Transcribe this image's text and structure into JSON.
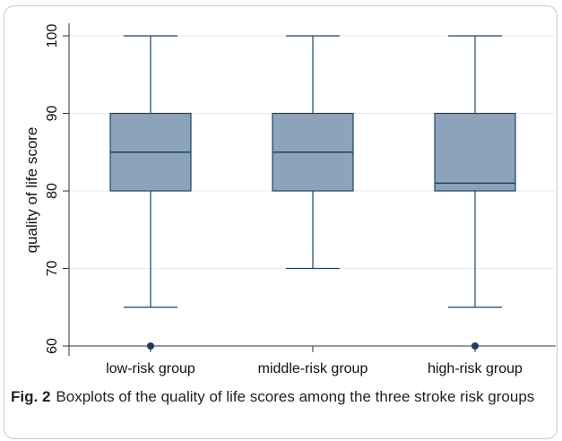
{
  "figure": {
    "caption_label": "Fig. 2",
    "caption_text": "Boxplots of the quality of life scores among the three stroke risk groups"
  },
  "chart_data": {
    "type": "boxplot",
    "title": "",
    "xlabel": "",
    "ylabel": "quality of life score",
    "ylim": [
      60,
      100
    ],
    "yticks": [
      60,
      70,
      80,
      90,
      100
    ],
    "grid": true,
    "box_color": "#8da3ba",
    "line_color": "#1f4468",
    "outlier_color": "#1a3d63",
    "categories": [
      "low-risk group",
      "middle-risk group",
      "high-risk group"
    ],
    "boxes": [
      {
        "category": "low-risk group",
        "whisker_low": 65,
        "q1": 80,
        "median": 85,
        "q3": 90,
        "whisker_high": 100,
        "outliers": [
          60
        ]
      },
      {
        "category": "middle-risk group",
        "whisker_low": 70,
        "q1": 80,
        "median": 85,
        "q3": 90,
        "whisker_high": 100,
        "outliers": []
      },
      {
        "category": "high-risk group",
        "whisker_low": 65,
        "q1": 80,
        "median": 81,
        "q3": 90,
        "whisker_high": 100,
        "outliers": [
          60
        ]
      }
    ]
  }
}
